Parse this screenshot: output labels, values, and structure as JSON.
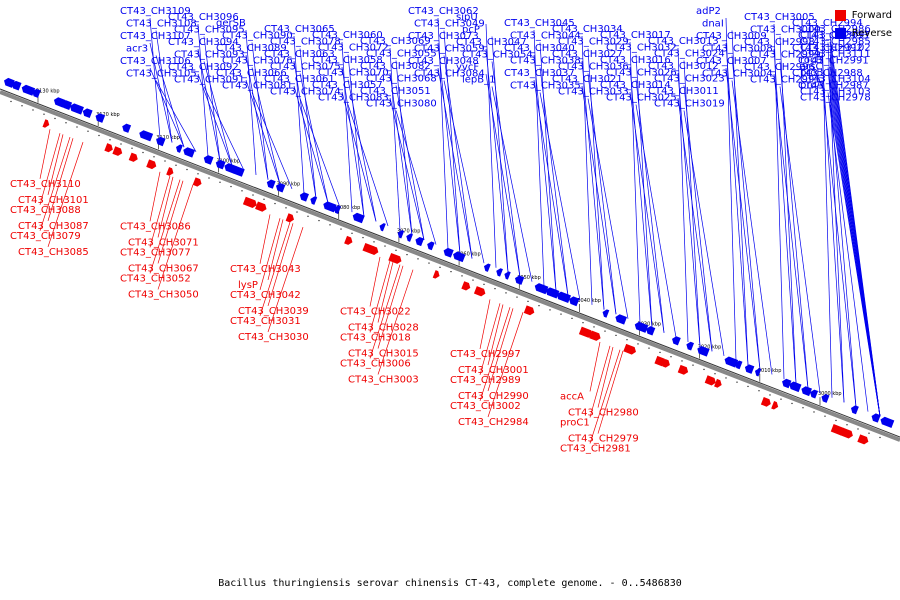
{
  "caption": "Bacillus thuringiensis serovar chinensis CT-43, complete genome. - 0..5486830",
  "legend": [
    {
      "label": "Forward",
      "color": "#ee0000"
    },
    {
      "label": "Reverse",
      "color": "#0000ee"
    }
  ],
  "colors": {
    "forward": "#ee0000",
    "reverse": "#0000ee",
    "axis": "#888888"
  },
  "ticks": [
    "3130 kbp",
    "3120 kbp",
    "3110 kbp",
    "3100 kbp",
    "3090 kbp",
    "3080 kbp",
    "3070 kbp",
    "3060 kbp",
    "3050 kbp",
    "3040 kbp",
    "3030 kbp",
    "3020 kbp",
    "3010 kbp",
    "3000 kbp"
  ],
  "reverse_labels": [
    "CT43_CH3109",
    "CT43_CH3108",
    "CT43_CH3107",
    "acr3",
    "CT43_CH3106",
    "CT43_CH3105",
    "CT43_CH3096",
    "CT43_CH3095",
    "CT43_CH3094",
    "CT43_CH3093",
    "CT43_CH3092",
    "CT43_CH3091",
    "gerSB",
    "CT43_CH3090",
    "CT43_CH3089",
    "CT43_CH3076",
    "CT43_CH3066",
    "CT43_CH3081",
    "CT43_CH3065",
    "CT43_CH3078",
    "CT43_CH3063",
    "CT43_CH3075",
    "CT43_CH3061",
    "CT43_CH3074",
    "CT43_CH3060",
    "CT43_CH3072",
    "CT43_CH3058",
    "CT43_CH3070",
    "CT43_CH3057",
    "CT43_CH3083",
    "CT43_CH3069",
    "CT43_CH3055",
    "CT43_CH3082",
    "CT43_CH3068",
    "CT43_CH3051",
    "CT43_CH3080",
    "CT43_CH3062",
    "CT43_CH3049",
    "CT43_CH3073",
    "CT43_CH3059",
    "CT43_CH3048",
    "CT43_CH3084",
    "sipU",
    "pcP",
    "CT43_CH3047",
    "CT43_CH3054",
    "yvcF",
    "lepB_1",
    "CT43_CH3045",
    "CT43_CH3044",
    "CT43_CH3040",
    "CT43_CH3038",
    "CT43_CH3037",
    "CT43_CH3035",
    "CT43_CH3034",
    "CT43_CH3029",
    "CT43_CH3027",
    "CT43_CH3036",
    "CT43_CH3021",
    "CT43_CH3033",
    "CT43_CH3017",
    "CT43_CH3032",
    "CT43_CH3016",
    "CT43_CH3026",
    "CT43_CH3014",
    "CT43_CH3025",
    "CT43_CH3013",
    "CT43_CH3024",
    "CT43_CH3012",
    "CT43_CH3023",
    "CT43_CH3011",
    "CT43_CH3019",
    "adP2",
    "dnaI",
    "CT43_CH3009",
    "CT43_CH3008",
    "CT43_CH3007",
    "CT43_CH3004",
    "CT43_CH3005",
    "CT43_CH3000",
    "CT43_CH2998",
    "CT43_CH2999",
    "CT43_CH2996",
    "CT43_CH2995",
    "CT43_CH2994",
    "CT43_CH2993",
    "CT43_CH2992",
    "CT43_CH2991",
    "CT43_CH2988",
    "CT43_CH2987",
    "CT43_CH2986",
    "CT43_CH2985",
    "CT43_CH3111",
    "arsC",
    "CT43_CH3104",
    "CT43_CH3103",
    "CT43_CH3097",
    "CT43_CH3102",
    "rocB",
    "proB",
    "proA",
    "CT43_CH2978"
  ],
  "forward_labels": [
    "CT43_CH3110",
    "CT43_CH3101",
    "CT43_CH3088",
    "CT43_CH3087",
    "CT43_CH3079",
    "CT43_CH3085",
    "CT43_CH3086",
    "CT43_CH3071",
    "CT43_CH3077",
    "CT43_CH3067",
    "CT43_CH3052",
    "CT43_CH3050",
    "CT43_CH3043",
    "lysP",
    "CT43_CH3042",
    "CT43_CH3039",
    "CT43_CH3031",
    "CT43_CH3030",
    "CT43_CH3022",
    "CT43_CH3028",
    "CT43_CH3018",
    "CT43_CH3015",
    "CT43_CH3006",
    "CT43_CH3003",
    "CT43_CH2997",
    "CT43_CH3001",
    "CT43_CH2989",
    "CT43_CH2990",
    "CT43_CH3002",
    "CT43_CH2984",
    "accA",
    "CT43_CH2980",
    "proC1",
    "CT43_CH2979",
    "CT43_CH2981"
  ]
}
